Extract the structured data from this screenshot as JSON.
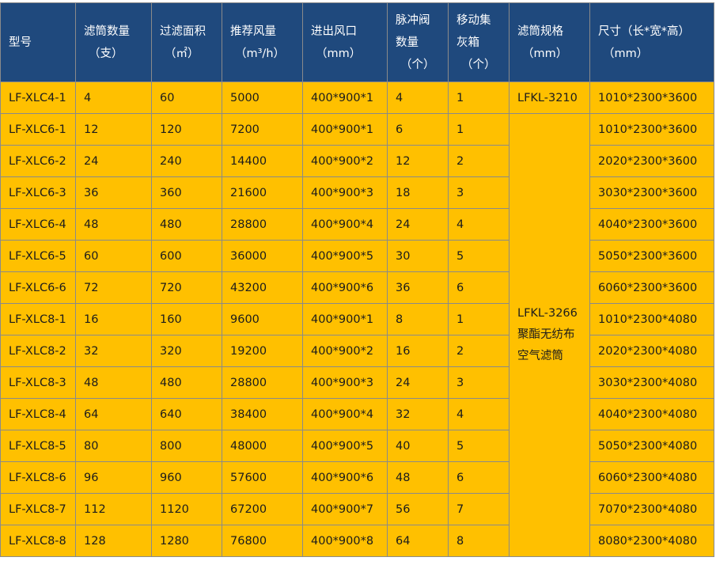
{
  "colors": {
    "header_bg": "#1f497d",
    "body_bg": "#ffc000",
    "border": "#8a8a8a"
  },
  "headers": [
    [
      "型号"
    ],
    [
      "滤筒数量",
      "（支）"
    ],
    [
      "过滤面积",
      "（㎡）"
    ],
    [
      "推荐风量",
      "（m³/h）"
    ],
    [
      "进出风口",
      "（mm）"
    ],
    [
      "脉冲阀",
      "数量",
      "（个）"
    ],
    [
      "移动集",
      "灰箱",
      "（个）"
    ],
    [
      "滤筒规格",
      "（mm）"
    ],
    [
      "尺寸（长*宽*高）",
      "（mm）"
    ]
  ],
  "rows": [
    [
      "LF-XLC4-1",
      "4",
      "60",
      "5000",
      "400*900*1",
      "4",
      "1",
      "LFKL-3210",
      "1010*2300*3600"
    ],
    [
      "LF-XLC6-1",
      "12",
      "120",
      "7200",
      "400*900*1",
      "6",
      "1",
      "",
      "1010*2300*3600"
    ],
    [
      "LF-XLC6-2",
      "24",
      "240",
      "14400",
      "400*900*2",
      "12",
      "2",
      "",
      "2020*2300*3600"
    ],
    [
      "LF-XLC6-3",
      "36",
      "360",
      "21600",
      "400*900*3",
      "18",
      "3",
      "",
      "3030*2300*3600"
    ],
    [
      "LF-XLC6-4",
      "48",
      "480",
      "28800",
      "400*900*4",
      "24",
      "4",
      "",
      "4040*2300*3600"
    ],
    [
      "LF-XLC6-5",
      "60",
      "600",
      "36000",
      "400*900*5",
      "30",
      "5",
      "",
      "5050*2300*3600"
    ],
    [
      "LF-XLC6-6",
      "72",
      "720",
      "43200",
      "400*900*6",
      "36",
      "6",
      "",
      "6060*2300*3600"
    ],
    [
      "LF-XLC8-1",
      "16",
      "160",
      "9600",
      "400*900*1",
      "8",
      "1",
      "",
      "1010*2300*4080"
    ],
    [
      "LF-XLC8-2",
      "32",
      "320",
      "19200",
      "400*900*2",
      "16",
      "2",
      "",
      "2020*2300*4080"
    ],
    [
      "LF-XLC8-3",
      "48",
      "480",
      "28800",
      "400*900*3",
      "24",
      "3",
      "",
      "3030*2300*4080"
    ],
    [
      "LF-XLC8-4",
      "64",
      "640",
      "38400",
      "400*900*4",
      "32",
      "4",
      "",
      "4040*2300*4080"
    ],
    [
      "LF-XLC8-5",
      "80",
      "800",
      "48000",
      "400*900*5",
      "40",
      "5",
      "",
      "5050*2300*4080"
    ],
    [
      "LF-XLC8-6",
      "96",
      "960",
      "57600",
      "400*900*6",
      "48",
      "6",
      "",
      "6060*2300*4080"
    ],
    [
      "LF-XLC8-7",
      "112",
      "1120",
      "67200",
      "400*900*7",
      "56",
      "7",
      "",
      "7070*2300*4080"
    ],
    [
      "LF-XLC8-8",
      "128",
      "1280",
      "76800",
      "400*900*8",
      "64",
      "8",
      "",
      "8080*2300*4080"
    ]
  ],
  "merged_filter_spec": [
    "LFKL-3266",
    "聚酯无纺布",
    "空气滤筒"
  ]
}
